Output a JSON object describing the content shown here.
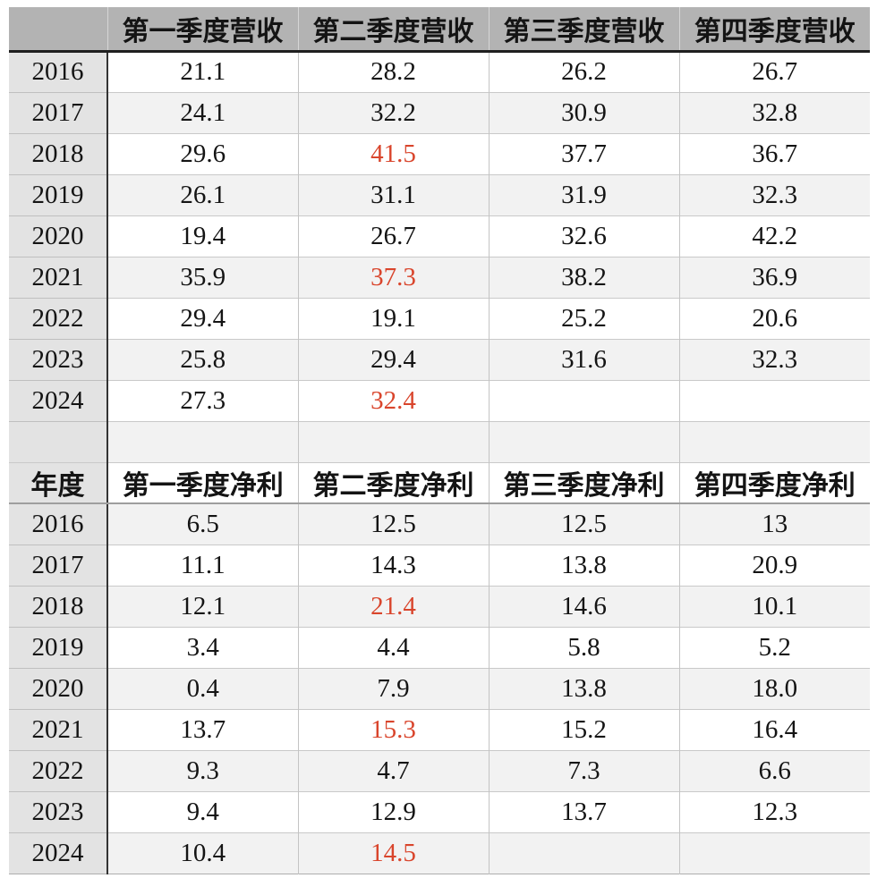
{
  "colors": {
    "header_bg": "#b3b3b3",
    "year_column_bg": "#e3e3e3",
    "alt_row_bg": "#f2f2f2",
    "row_bg": "#ffffff",
    "red_highlight": "#d9452c",
    "text": "#141414",
    "border_light": "#c9c9c9",
    "border_dark": "#333333"
  },
  "chart_data": [
    {
      "type": "table",
      "header": [
        "",
        "第一季度营收",
        "第二季度营收",
        "第三季度营收",
        "第四季度营收"
      ],
      "rows": [
        {
          "year": "2016",
          "values": [
            "21.1",
            "28.2",
            "26.2",
            "26.7"
          ],
          "red_cols": []
        },
        {
          "year": "2017",
          "values": [
            "24.1",
            "32.2",
            "30.9",
            "32.8"
          ],
          "red_cols": []
        },
        {
          "year": "2018",
          "values": [
            "29.6",
            "41.5",
            "37.7",
            "36.7"
          ],
          "red_cols": [
            1
          ]
        },
        {
          "year": "2019",
          "values": [
            "26.1",
            "31.1",
            "31.9",
            "32.3"
          ],
          "red_cols": []
        },
        {
          "year": "2020",
          "values": [
            "19.4",
            "26.7",
            "32.6",
            "42.2"
          ],
          "red_cols": []
        },
        {
          "year": "2021",
          "values": [
            "35.9",
            "37.3",
            "38.2",
            "36.9"
          ],
          "red_cols": [
            1
          ]
        },
        {
          "year": "2022",
          "values": [
            "29.4",
            "19.1",
            "25.2",
            "20.6"
          ],
          "red_cols": []
        },
        {
          "year": "2023",
          "values": [
            "25.8",
            "29.4",
            "31.6",
            "32.3"
          ],
          "red_cols": []
        },
        {
          "year": "2024",
          "values": [
            "27.3",
            "32.4",
            "",
            ""
          ],
          "red_cols": [
            1
          ]
        }
      ]
    },
    {
      "type": "table",
      "header": [
        "年度",
        "第一季度净利",
        "第二季度净利",
        "第三季度净利",
        "第四季度净利"
      ],
      "rows": [
        {
          "year": "2016",
          "values": [
            "6.5",
            "12.5",
            "12.5",
            "13"
          ],
          "red_cols": []
        },
        {
          "year": "2017",
          "values": [
            "11.1",
            "14.3",
            "13.8",
            "20.9"
          ],
          "red_cols": []
        },
        {
          "year": "2018",
          "values": [
            "12.1",
            "21.4",
            "14.6",
            "10.1"
          ],
          "red_cols": [
            1
          ]
        },
        {
          "year": "2019",
          "values": [
            "3.4",
            "4.4",
            "5.8",
            "5.2"
          ],
          "red_cols": []
        },
        {
          "year": "2020",
          "values": [
            "0.4",
            "7.9",
            "13.8",
            "18.0"
          ],
          "red_cols": []
        },
        {
          "year": "2021",
          "values": [
            "13.7",
            "15.3",
            "15.2",
            "16.4"
          ],
          "red_cols": [
            1
          ]
        },
        {
          "year": "2022",
          "values": [
            "9.3",
            "4.7",
            "7.3",
            "6.6"
          ],
          "red_cols": []
        },
        {
          "year": "2023",
          "values": [
            "9.4",
            "12.9",
            "13.7",
            "12.3"
          ],
          "red_cols": []
        },
        {
          "year": "2024",
          "values": [
            "10.4",
            "14.5",
            "",
            ""
          ],
          "red_cols": [
            1
          ]
        }
      ]
    }
  ]
}
